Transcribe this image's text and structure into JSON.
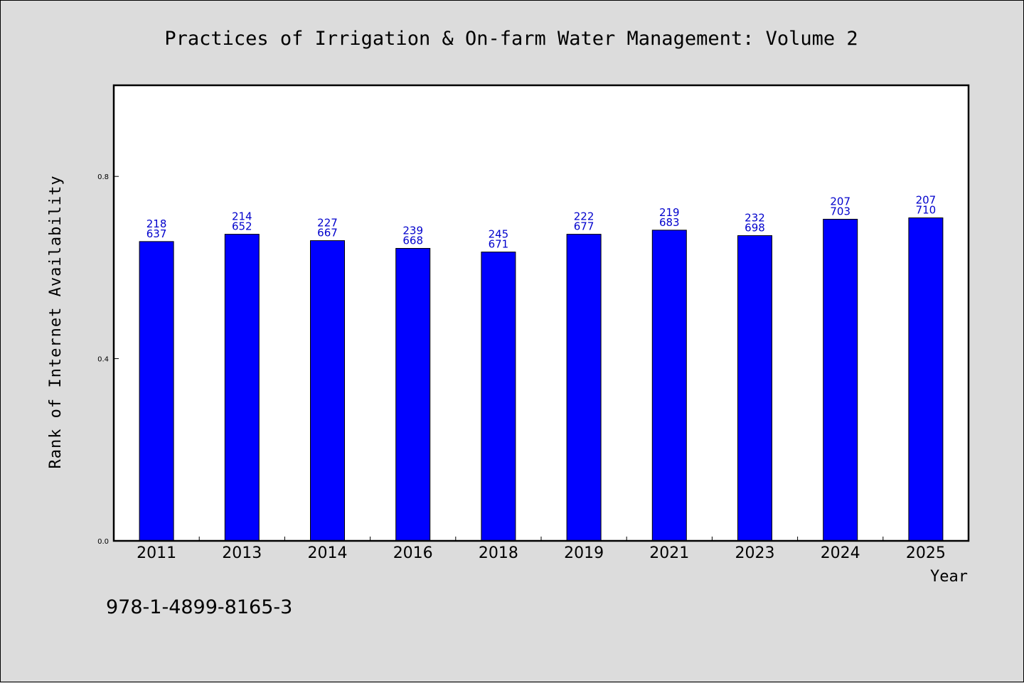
{
  "colors": {
    "bar": "#0000ff",
    "bar_label": "#0000cc",
    "plot_bg": "#ffffff",
    "page_bg": "#dcdcdc"
  },
  "footer": {
    "isbn": "978-1-4899-8165-3"
  },
  "chart_data": {
    "type": "bar",
    "title": "Practices of Irrigation & On-farm Water Management: Volume 2",
    "xlabel": "Year",
    "ylabel": "Rank of Internet Availability",
    "ylim": [
      0,
      1.0
    ],
    "yticks": [
      "0.0",
      "0.4",
      "0.8"
    ],
    "grid": false,
    "categories": [
      "2011",
      "2013",
      "2014",
      "2016",
      "2018",
      "2019",
      "2021",
      "2023",
      "2024",
      "2025"
    ],
    "values": [
      0.657,
      0.673,
      0.659,
      0.642,
      0.634,
      0.673,
      0.682,
      0.67,
      0.706,
      0.709
    ],
    "bar_labels": [
      [
        "218",
        "637"
      ],
      [
        "214",
        "652"
      ],
      [
        "227",
        "667"
      ],
      [
        "239",
        "668"
      ],
      [
        "245",
        "671"
      ],
      [
        "222",
        "677"
      ],
      [
        "219",
        "683"
      ],
      [
        "232",
        "698"
      ],
      [
        "207",
        "703"
      ],
      [
        "207",
        "710"
      ]
    ]
  }
}
